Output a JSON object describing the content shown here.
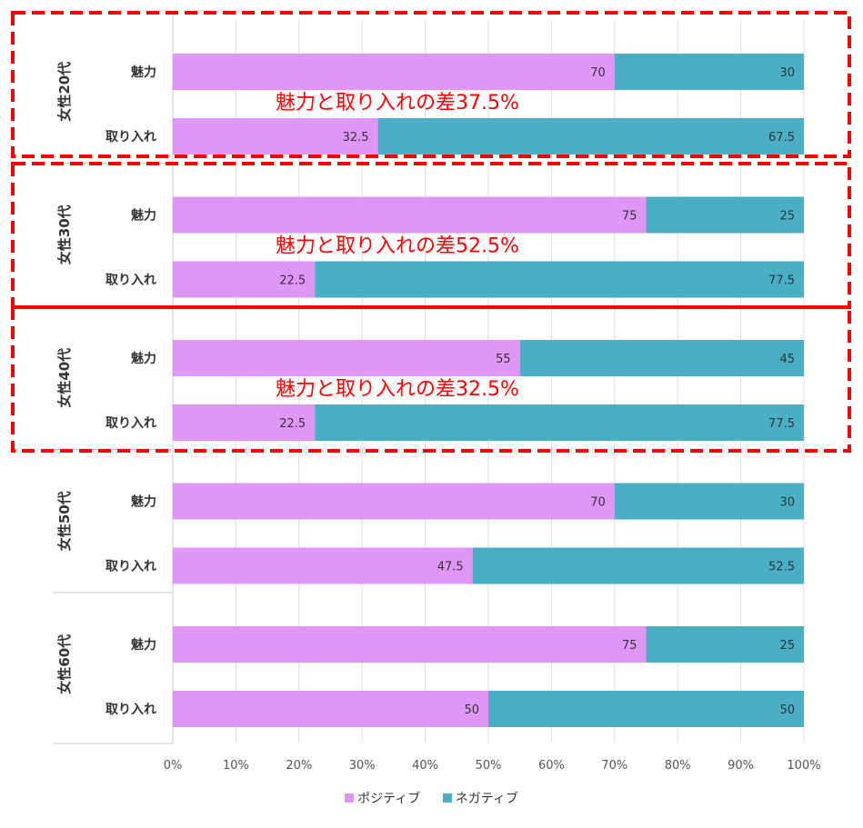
{
  "chart_data": {
    "type": "bar",
    "orientation": "horizontal",
    "stacked": "100%",
    "groups": [
      {
        "label": "女性20代",
        "bars": [
          {
            "label": "魅力",
            "positive": 70,
            "negative": 30,
            "positive_label": "70",
            "negative_label": "30"
          },
          {
            "label": "取り入れ",
            "positive": 32.5,
            "negative": 67.5,
            "positive_label": "32.5",
            "negative_label": "67.5"
          }
        ]
      },
      {
        "label": "女性30代",
        "bars": [
          {
            "label": "魅力",
            "positive": 75,
            "negative": 25,
            "positive_label": "75",
            "negative_label": "25"
          },
          {
            "label": "取り入れ",
            "positive": 22.5,
            "negative": 77.5,
            "positive_label": "22.5",
            "negative_label": "77.5"
          }
        ]
      },
      {
        "label": "女性40代",
        "bars": [
          {
            "label": "魅力",
            "positive": 55,
            "negative": 45,
            "positive_label": "55",
            "negative_label": "45"
          },
          {
            "label": "取り入れ",
            "positive": 22.5,
            "negative": 77.5,
            "positive_label": "22.5",
            "negative_label": "77.5"
          }
        ]
      },
      {
        "label": "女性50代",
        "bars": [
          {
            "label": "魅力",
            "positive": 70,
            "negative": 30,
            "positive_label": "70",
            "negative_label": "30"
          },
          {
            "label": "取り入れ",
            "positive": 47.5,
            "negative": 52.5,
            "positive_label": "47.5",
            "negative_label": "52.5"
          }
        ]
      },
      {
        "label": "女性60代",
        "bars": [
          {
            "label": "魅力",
            "positive": 75,
            "negative": 25,
            "positive_label": "75",
            "negative_label": "25"
          },
          {
            "label": "取り入れ",
            "positive": 50,
            "negative": 50,
            "positive_label": "50",
            "negative_label": "50"
          }
        ]
      }
    ],
    "series": [
      {
        "name": "ポジティブ",
        "color": "#e096f5"
      },
      {
        "name": "ネガティブ",
        "color": "#4aaec4"
      }
    ],
    "x_ticks": [
      "0%",
      "10%",
      "20%",
      "30%",
      "40%",
      "50%",
      "60%",
      "70%",
      "80%",
      "90%",
      "100%"
    ],
    "xlim": [
      0,
      100
    ],
    "grid": true,
    "legend_position": "bottom",
    "annotations": [
      {
        "group": 0,
        "text": "魅力と取り入れの差37.5%"
      },
      {
        "group": 1,
        "text": "魅力と取り入れの差52.5%"
      },
      {
        "group": 2,
        "text": "魅力と取り入れの差32.5%"
      }
    ],
    "highlight_color": "#ff0000"
  }
}
